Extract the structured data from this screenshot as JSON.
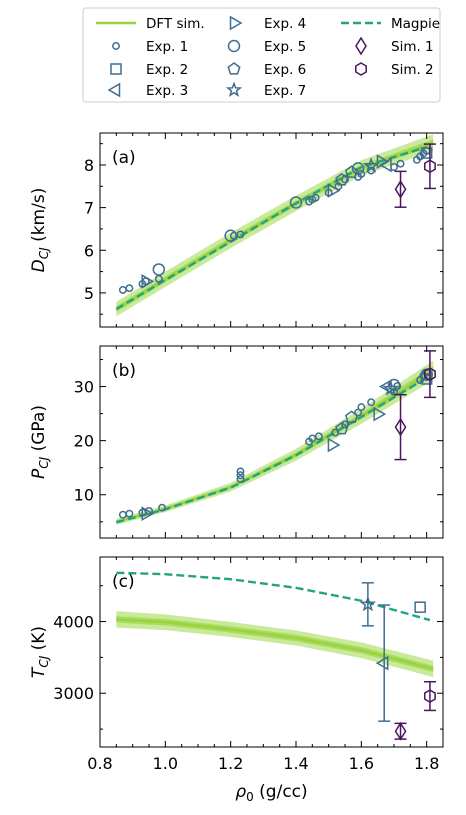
{
  "colors": {
    "dft": "#9bd43a",
    "dft_band_outer": "#c9ea9a",
    "dft_band_inner": "#a9db63",
    "exp": "#3f6e91",
    "magpie": "#23a47f",
    "sim": "#4a145f"
  },
  "legend": {
    "items": [
      {
        "label": "DFT sim.",
        "marker": "line-solid",
        "color_key": "dft"
      },
      {
        "label": "Exp. 1",
        "marker": "circle-small",
        "color_key": "exp"
      },
      {
        "label": "Exp. 2",
        "marker": "square",
        "color_key": "exp"
      },
      {
        "label": "Exp. 3",
        "marker": "triangle-left",
        "color_key": "exp"
      },
      {
        "label": "Exp. 4",
        "marker": "triangle-right",
        "color_key": "exp"
      },
      {
        "label": "Exp. 5",
        "marker": "circle",
        "color_key": "exp"
      },
      {
        "label": "Exp. 6",
        "marker": "pentagon",
        "color_key": "exp"
      },
      {
        "label": "Exp. 7",
        "marker": "star",
        "color_key": "exp"
      },
      {
        "label": "Magpie",
        "marker": "line-dashed",
        "color_key": "magpie"
      },
      {
        "label": "Sim. 1",
        "marker": "diamond",
        "color_key": "sim"
      },
      {
        "label": "Sim. 2",
        "marker": "hexagon",
        "color_key": "sim"
      }
    ]
  },
  "chart_data": [
    {
      "type": "scatter",
      "panel_label": "(a)",
      "ylabel_main": "D",
      "ylabel_sub": "CJ",
      "ylabel_unit": "(km/s)",
      "xlim": [
        0.8,
        1.85
      ],
      "ylim": [
        4.2,
        8.75
      ],
      "yticks": [
        5,
        6,
        7,
        8
      ],
      "grid": false,
      "dft": {
        "x": [
          0.85,
          1.0,
          1.2,
          1.4,
          1.6,
          1.82
        ],
        "y": [
          4.62,
          5.32,
          6.23,
          7.1,
          7.93,
          8.52
        ],
        "band_outer": [
          0.17,
          0.18,
          0.18,
          0.18,
          0.18,
          0.2
        ],
        "band_inner": [
          0.07,
          0.07,
          0.07,
          0.07,
          0.07,
          0.08
        ]
      },
      "magpie": {
        "x": [
          0.85,
          1.0,
          1.2,
          1.4,
          1.6,
          1.8
        ],
        "y": [
          4.62,
          5.3,
          6.2,
          7.1,
          7.95,
          8.42
        ]
      },
      "exp1": {
        "x": [
          0.87,
          0.89,
          0.93,
          0.94,
          0.98,
          1.21,
          1.23,
          1.44,
          1.45,
          1.46,
          1.5,
          1.53,
          1.55,
          1.59,
          1.6,
          1.63,
          1.7,
          1.72,
          1.77,
          1.78,
          1.79,
          1.8
        ],
        "y": [
          5.07,
          5.11,
          5.21,
          5.27,
          5.33,
          6.34,
          6.37,
          7.14,
          7.19,
          7.23,
          7.35,
          7.5,
          7.66,
          7.72,
          7.79,
          7.87,
          7.95,
          8.03,
          8.12,
          8.2,
          8.27,
          8.33
        ]
      },
      "exp2": {
        "x": [
          1.8
        ],
        "y": [
          8.28
        ]
      },
      "exp3": {
        "x": [
          1.68
        ],
        "y": [
          8.0
        ]
      },
      "exp4": {
        "x": [
          0.94,
          1.51,
          1.66
        ],
        "y": [
          5.27,
          7.4,
          8.08
        ]
      },
      "exp5": {
        "x": [
          0.98,
          1.2,
          1.4,
          1.59
        ],
        "y": [
          5.55,
          6.34,
          7.12,
          7.92
        ]
      },
      "exp6": {
        "x": [
          1.54,
          1.57
        ],
        "y": [
          7.65,
          7.83
        ]
      },
      "exp7": {
        "x": [
          1.63
        ],
        "y": [
          7.98
        ]
      },
      "sim1": {
        "x": [
          1.72
        ],
        "y": [
          7.43
        ],
        "err": [
          0.42
        ]
      },
      "sim2": {
        "x": [
          1.81
        ],
        "y": [
          7.97
        ],
        "err": [
          0.52
        ]
      }
    },
    {
      "type": "scatter",
      "panel_label": "(b)",
      "ylabel_main": "P",
      "ylabel_sub": "CJ",
      "ylabel_unit": "(GPa)",
      "xlim": [
        0.8,
        1.85
      ],
      "ylim": [
        2.0,
        37.5
      ],
      "yticks": [
        10,
        20,
        30
      ],
      "grid": false,
      "dft": {
        "x": [
          0.85,
          1.0,
          1.2,
          1.4,
          1.6,
          1.82
        ],
        "y": [
          5.0,
          7.4,
          11.4,
          17.4,
          24.5,
          33.0
        ],
        "band_outer": [
          0.55,
          0.6,
          0.8,
          1.1,
          1.4,
          1.8
        ],
        "band_inner": [
          0.25,
          0.3,
          0.35,
          0.45,
          0.6,
          0.8
        ]
      },
      "magpie": {
        "x": [
          0.85,
          1.0,
          1.2,
          1.4,
          1.6,
          1.8
        ],
        "y": [
          4.9,
          7.3,
          11.3,
          17.3,
          24.4,
          31.6
        ]
      },
      "exp1": {
        "x": [
          0.87,
          0.89,
          0.93,
          0.95,
          0.99,
          1.23,
          1.23,
          1.23,
          1.44,
          1.45,
          1.47,
          1.52,
          1.55,
          1.59,
          1.6,
          1.63,
          1.7,
          1.71,
          1.78,
          1.79,
          1.8
        ],
        "y": [
          6.3,
          6.5,
          6.7,
          7.0,
          7.6,
          12.9,
          13.6,
          14.3,
          19.8,
          20.4,
          20.8,
          21.5,
          23.0,
          25.2,
          26.2,
          27.1,
          29.0,
          30.1,
          31.2,
          32.0,
          32.6
        ]
      },
      "exp2": {
        "x": [
          1.8
        ],
        "y": [
          31.4
        ]
      },
      "exp3": {
        "x": [
          1.68
        ],
        "y": [
          30.0
        ]
      },
      "exp4": {
        "x": [
          0.94,
          1.51,
          1.65
        ],
        "y": [
          6.5,
          19.2,
          24.9
        ]
      },
      "exp5": {
        "x": [
          1.7,
          1.8
        ],
        "y": [
          30.3,
          32.2
        ]
      },
      "exp6": {
        "x": [
          1.54,
          1.57
        ],
        "y": [
          22.2,
          24.3
        ]
      },
      "exp7": {
        "x": [
          1.69
        ],
        "y": [
          29.6
        ]
      },
      "sim1": {
        "x": [
          1.72
        ],
        "y": [
          22.5
        ],
        "err": [
          6.0
        ]
      },
      "sim2": {
        "x": [
          1.81
        ],
        "y": [
          32.3
        ],
        "err": [
          4.3
        ]
      }
    },
    {
      "type": "scatter",
      "panel_label": "(c)",
      "ylabel_main": "T",
      "ylabel_sub": "CJ",
      "ylabel_unit": "(K)",
      "xlim": [
        0.8,
        1.85
      ],
      "ylim": [
        2250,
        4900
      ],
      "yticks": [
        3000,
        4000
      ],
      "xticks": [
        0.8,
        1.0,
        1.2,
        1.4,
        1.6,
        1.8
      ],
      "xtick_labels": [
        "0.8",
        "1.0",
        "1.2",
        "1.4",
        "1.6",
        "1.8"
      ],
      "xlabel_main": "ρ",
      "xlabel_sub": "0",
      "xlabel_unit": "(g/cc)",
      "grid": false,
      "dft": {
        "x": [
          0.85,
          1.0,
          1.2,
          1.4,
          1.6,
          1.82
        ],
        "y": [
          4030,
          3990,
          3890,
          3770,
          3600,
          3340
        ],
        "band_outer": [
          115,
          110,
          105,
          105,
          110,
          115
        ],
        "band_inner": [
          45,
          45,
          45,
          45,
          45,
          45
        ]
      },
      "magpie": {
        "x": [
          0.85,
          1.0,
          1.2,
          1.4,
          1.6,
          1.81
        ],
        "y": [
          4680,
          4660,
          4590,
          4470,
          4290,
          4020
        ]
      },
      "exp2": {
        "x": [
          1.78
        ],
        "y": [
          4200
        ]
      },
      "exp3": {
        "x": [
          1.67
        ],
        "y": [
          3420
        ],
        "err": [
          810
        ]
      },
      "exp7": {
        "x": [
          1.62
        ],
        "y": [
          4240
        ],
        "err": [
          300
        ]
      },
      "sim1": {
        "x": [
          1.72
        ],
        "y": [
          2470
        ],
        "err": [
          110
        ]
      },
      "sim2": {
        "x": [
          1.81
        ],
        "y": [
          2960
        ],
        "err": [
          200
        ]
      }
    }
  ]
}
